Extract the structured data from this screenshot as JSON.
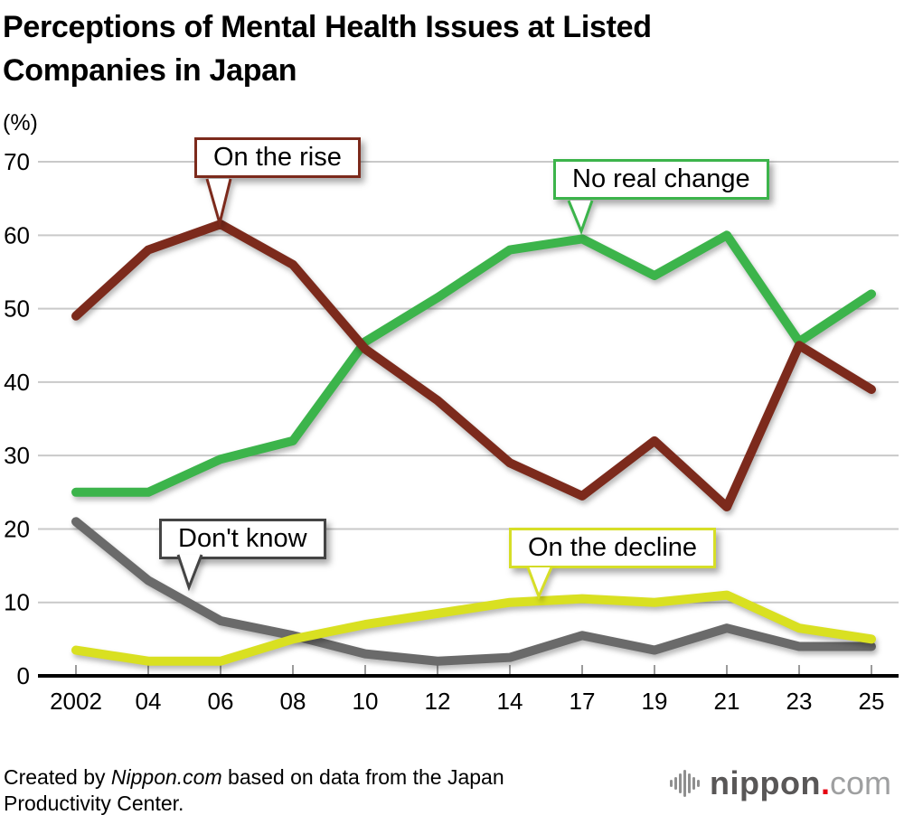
{
  "header": {
    "title_line1": "Perceptions of Mental Health Issues at Listed",
    "title_line2": "Companies in Japan",
    "unit_label": "(%)"
  },
  "chart_data": {
    "type": "line",
    "title": "Perceptions of Mental Health Issues at Listed Companies in Japan",
    "unit": "%",
    "x_labels": [
      "2002",
      "04",
      "06",
      "08",
      "10",
      "12",
      "14",
      "17",
      "19",
      "21",
      "23",
      "25"
    ],
    "y_ticks": [
      0,
      10,
      20,
      30,
      40,
      50,
      60,
      70
    ],
    "ylim": [
      0,
      70
    ],
    "grid": true,
    "legend_position": "callouts-on-lines",
    "series": [
      {
        "name": "On the rise",
        "color": "#7C2A1C",
        "values": [
          49,
          58,
          61.5,
          56,
          44.5,
          37.5,
          29,
          24.5,
          32,
          23,
          45,
          39
        ]
      },
      {
        "name": "No real change",
        "color": "#3CB44B",
        "values": [
          25,
          25,
          29.5,
          32,
          45.5,
          51.5,
          58,
          59.5,
          54.5,
          60,
          45.5,
          52
        ]
      },
      {
        "name": "Don't know",
        "color": "#6A6A6A",
        "values": [
          21,
          13,
          7.5,
          5.5,
          3,
          2,
          2.5,
          5.5,
          3.5,
          6.5,
          4,
          4
        ]
      },
      {
        "name": "On the decline",
        "color": "#D9E021",
        "values": [
          3.5,
          2,
          2,
          5,
          7,
          8.5,
          10,
          10.5,
          10,
          11,
          6.5,
          5
        ]
      }
    ]
  },
  "callouts": [
    {
      "label": "On the rise",
      "border_color": "#7C2A1C"
    },
    {
      "label": "No real change",
      "border_color": "#3CB44B"
    },
    {
      "label": "Don't know",
      "border_color": "#444444"
    },
    {
      "label": "On the decline",
      "border_color": "#D6DE27"
    }
  ],
  "axis_colors": {
    "gridline": "#C9C9C9",
    "axis": "#000000",
    "tick": "#9B9B9B"
  },
  "footer": {
    "credit_prefix": "Created by ",
    "credit_source": "Nippon.com",
    "credit_line1_rest": " based on data from the Japan",
    "credit_line2": "Productivity Center.",
    "logo_name": "nippon",
    "logo_dot": ".",
    "logo_tld": "com"
  }
}
